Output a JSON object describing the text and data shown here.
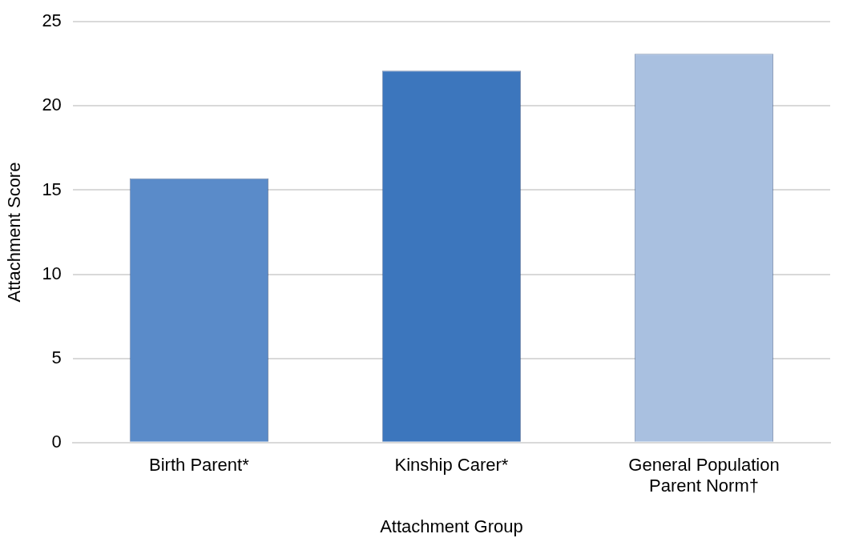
{
  "chart_data": {
    "type": "bar",
    "xlabel": "Attachment Group",
    "ylabel": "Attachment Score",
    "categories": [
      "Birth Parent*",
      "Kinship Carer*",
      "General Population Parent Norm†"
    ],
    "values": [
      15.7,
      22.1,
      23.1
    ],
    "colors": [
      "#5a8bc9",
      "#3c76bd",
      "#a9c0e0"
    ],
    "ylim": [
      0,
      25
    ],
    "yticks": [
      0,
      5,
      10,
      15,
      20,
      25
    ],
    "grid": "y",
    "legend": false
  }
}
